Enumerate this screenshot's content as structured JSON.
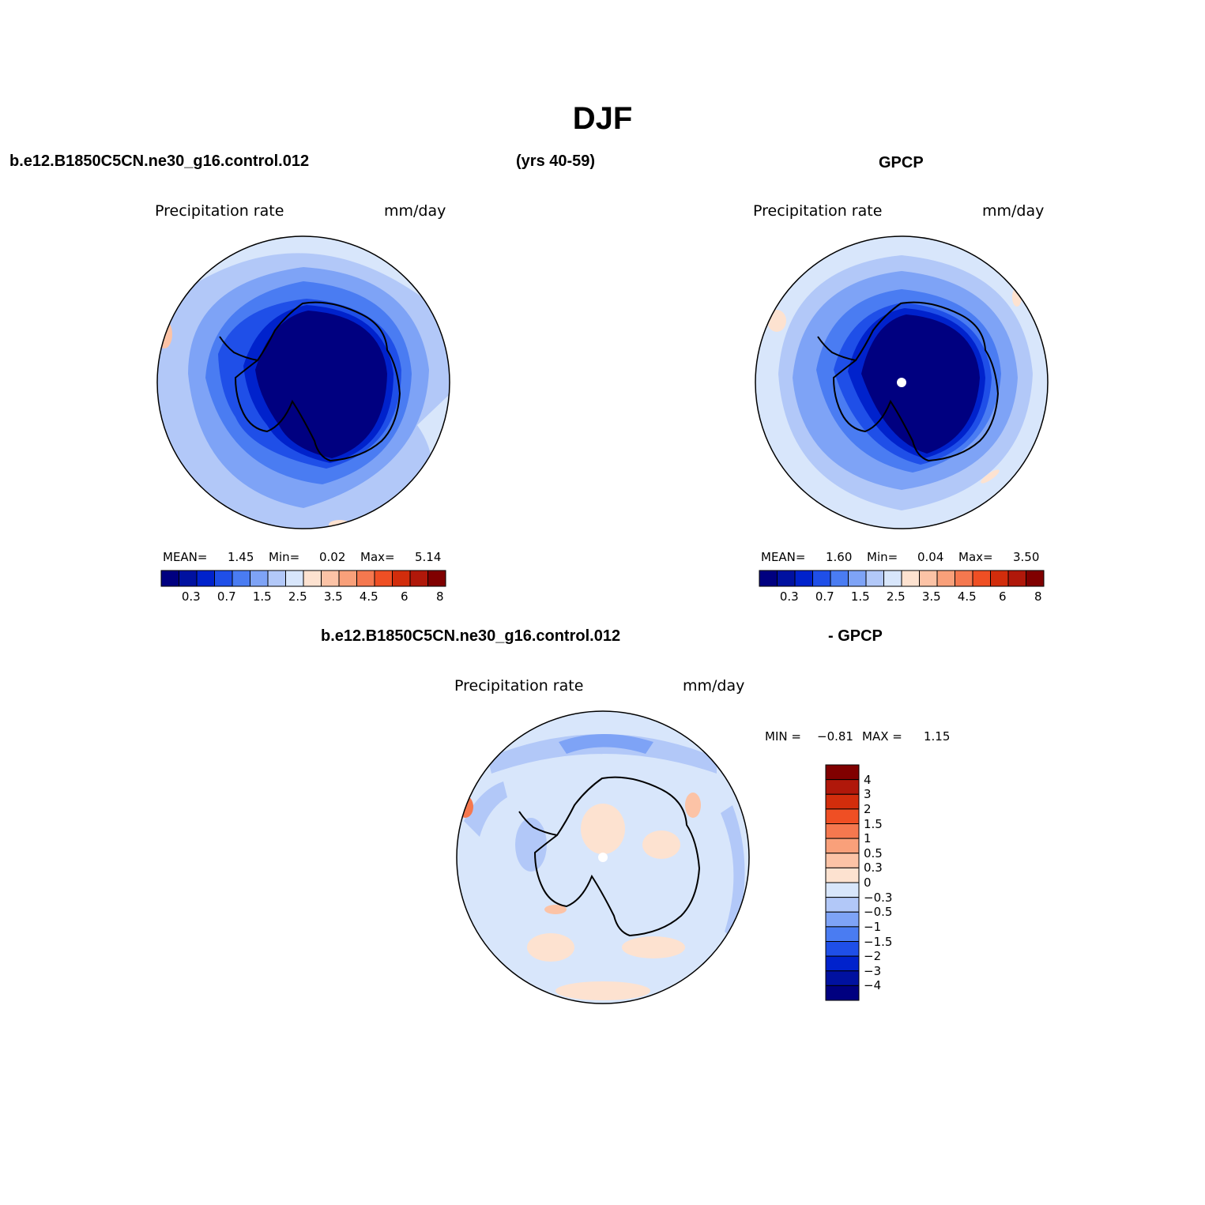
{
  "figure": {
    "title": "DJF",
    "case_name": "b.e12.B1850C5CN.ne30_g16.control.012",
    "years": "(yrs 40-59)",
    "obs_name": "GPCP",
    "diff_case_name": "b.e12.B1850C5CN.ne30_g16.control.012",
    "diff_obs_name": "- GPCP"
  },
  "panels": {
    "model": {
      "variable": "Precipitation rate",
      "units": "mm/day",
      "mean_label": "MEAN=",
      "mean": "1.45",
      "min_label": "Min=",
      "min": "0.02",
      "max_label": "Max=",
      "max": "5.14"
    },
    "obs": {
      "variable": "Precipitation rate",
      "units": "mm/day",
      "mean_label": "MEAN=",
      "mean": "1.60",
      "min_label": "Min=",
      "min": "0.04",
      "max_label": "Max=",
      "max": "3.50"
    },
    "diff": {
      "variable": "Precipitation rate",
      "units": "mm/day",
      "min_label": "MIN =",
      "min": "−0.81",
      "max_label": "MAX =",
      "max": "1.15"
    }
  },
  "colorbars": {
    "field": {
      "colors": [
        "#000080",
        "#0011a0",
        "#0022cc",
        "#1f4fe8",
        "#4a7cf2",
        "#7ea3f6",
        "#b2c8f8",
        "#d8e6fb",
        "#fde2d0",
        "#fcc3a6",
        "#f9a07a",
        "#f5784f",
        "#ef4f24",
        "#d22d0c",
        "#b0180a",
        "#800000"
      ],
      "tick_labels": [
        "0.3",
        "0.7",
        "1.5",
        "2.5",
        "3.5",
        "4.5",
        "6",
        "8"
      ]
    },
    "difference": {
      "colors": [
        "#000080",
        "#0011a0",
        "#0022cc",
        "#1f4fe8",
        "#4a7cf2",
        "#7ea3f6",
        "#b2c8f8",
        "#d8e6fb",
        "#fde2d0",
        "#fcc3a6",
        "#f9a07a",
        "#f5784f",
        "#ef4f24",
        "#d22d0c",
        "#b0180a",
        "#800000"
      ],
      "tick_labels": [
        "4",
        "3",
        "2",
        "1.5",
        "1",
        "0.5",
        "0.3",
        "0",
        "−0.3",
        "−0.5",
        "−1",
        "−1.5",
        "−2",
        "−3",
        "−4"
      ]
    }
  }
}
